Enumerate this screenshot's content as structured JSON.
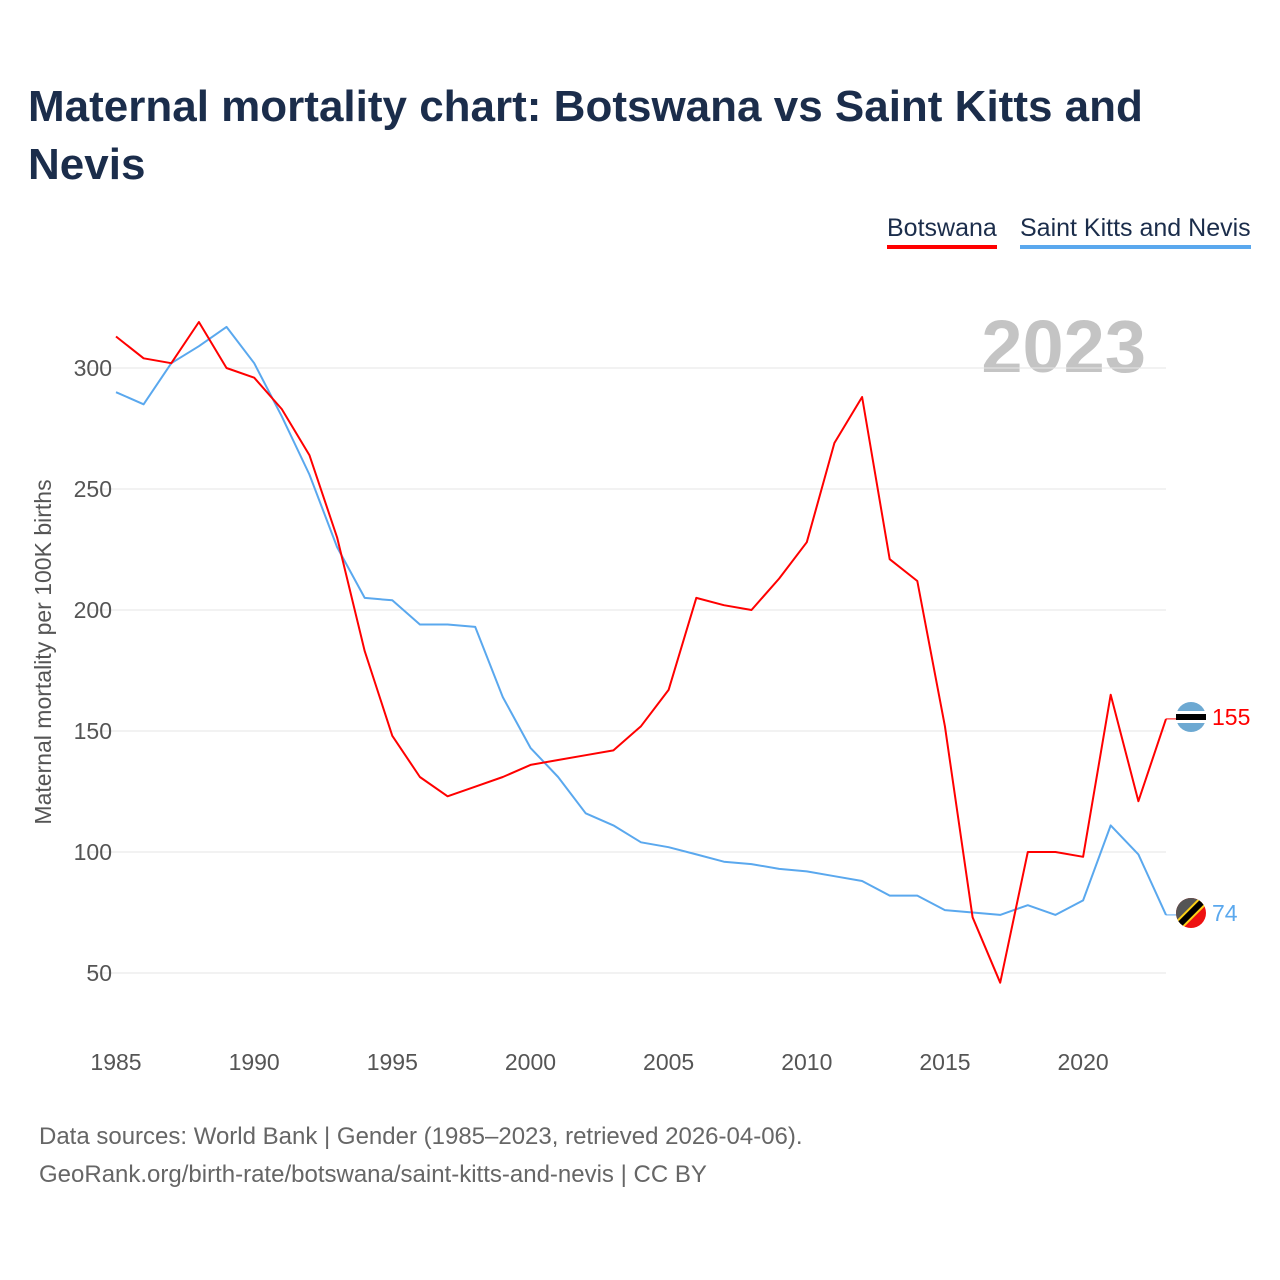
{
  "title": "Maternal mortality chart: Botswana vs Saint Kitts and Nevis",
  "footer": {
    "line1": "Data sources: World Bank | Gender (1985–2023, retrieved 2026-04-06).",
    "line2": "GeoRank.org/birth-rate/botswana/saint-kitts-and-nevis | CC BY"
  },
  "chart_data": {
    "type": "line",
    "title": "Maternal mortality chart: Botswana vs Saint Kitts and Nevis",
    "year_label": "2023",
    "xlabel": "",
    "ylabel": "Maternal mortality per 100K births",
    "xlim": [
      1985,
      2023
    ],
    "ylim": [
      35,
      330
    ],
    "x_ticks": [
      1985,
      1990,
      1995,
      2000,
      2005,
      2010,
      2015,
      2020
    ],
    "y_ticks": [
      50,
      100,
      150,
      200,
      250,
      300
    ],
    "grid": true,
    "legend_position": "top-right",
    "x": [
      1985,
      1986,
      1987,
      1988,
      1989,
      1990,
      1991,
      1992,
      1993,
      1994,
      1995,
      1996,
      1997,
      1998,
      1999,
      2000,
      2001,
      2002,
      2003,
      2004,
      2005,
      2006,
      2007,
      2008,
      2009,
      2010,
      2011,
      2012,
      2013,
      2014,
      2015,
      2016,
      2017,
      2018,
      2019,
      2020,
      2021,
      2022,
      2023
    ],
    "series": [
      {
        "name": "Botswana",
        "color": "#ff0000",
        "end_label": "155",
        "values": [
          313,
          304,
          302,
          319,
          300,
          296,
          283,
          264,
          230,
          183,
          148,
          131,
          123,
          127,
          131,
          136,
          138,
          140,
          142,
          152,
          167,
          205,
          202,
          200,
          213,
          228,
          269,
          288,
          221,
          212,
          152,
          73,
          46,
          100,
          100,
          98,
          165,
          121,
          155
        ]
      },
      {
        "name": "Saint Kitts and Nevis",
        "color": "#5aa8ee",
        "end_label": "74",
        "values": [
          290,
          285,
          302,
          309,
          317,
          302,
          280,
          256,
          226,
          205,
          204,
          194,
          194,
          193,
          164,
          143,
          131,
          116,
          111,
          104,
          102,
          99,
          96,
          95,
          93,
          92,
          90,
          88,
          82,
          82,
          76,
          75,
          74,
          78,
          74,
          80,
          111,
          99,
          74
        ]
      }
    ]
  }
}
